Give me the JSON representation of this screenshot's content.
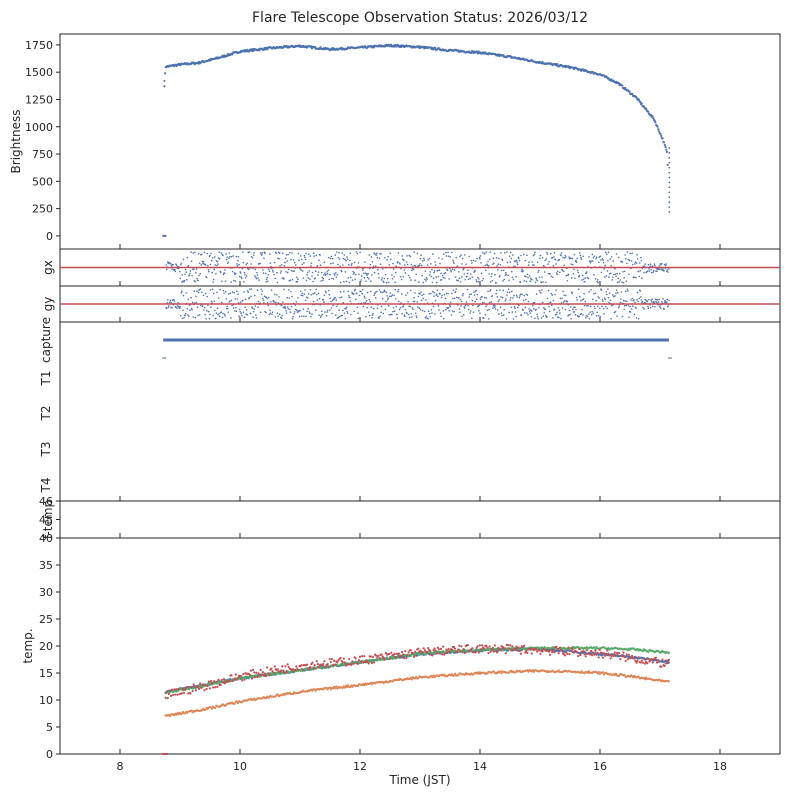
{
  "chart_data": {
    "type": "scatter",
    "title": "Flare Telescope Observation Status: 2026/03/12",
    "xlabel": "Time (JST)",
    "xlim": [
      7,
      19
    ],
    "xticks": [
      "8",
      "10",
      "12",
      "14",
      "16",
      "18"
    ],
    "observation_window": [
      8.72,
      17.15
    ],
    "panels": [
      {
        "id": "brightness",
        "ylabel": "Brightness",
        "ylim": [
          -120,
          1850
        ],
        "yticks": [
          "0",
          "250",
          "500",
          "750",
          "1000",
          "1250",
          "1500",
          "1750"
        ],
        "series": [
          {
            "color": "#4c72b0",
            "points": [
              [
                8.72,
                0
              ],
              [
                8.74,
                1380
              ],
              [
                8.76,
                1550
              ],
              [
                9.0,
                1570
              ],
              [
                9.3,
                1585
              ],
              [
                9.6,
                1625
              ],
              [
                10.0,
                1690
              ],
              [
                10.5,
                1720
              ],
              [
                11.0,
                1740
              ],
              [
                11.5,
                1710
              ],
              [
                12.0,
                1725
              ],
              [
                12.5,
                1745
              ],
              [
                13.0,
                1730
              ],
              [
                13.5,
                1700
              ],
              [
                14.0,
                1680
              ],
              [
                14.5,
                1640
              ],
              [
                15.0,
                1590
              ],
              [
                15.5,
                1545
              ],
              [
                16.0,
                1480
              ],
              [
                16.3,
                1400
              ],
              [
                16.6,
                1270
              ],
              [
                16.9,
                1070
              ],
              [
                17.05,
                880
              ],
              [
                17.12,
                760
              ],
              [
                17.15,
                330
              ],
              [
                17.16,
                220
              ]
            ]
          }
        ]
      },
      {
        "id": "gx",
        "ylabel": "gx",
        "reference_line": {
          "value": 0,
          "color": "#c44e52"
        },
        "series": [
          {
            "color": "#4c72b0",
            "spread": "random scatter around 0 between 8.72 and 17.15"
          }
        ]
      },
      {
        "id": "gy",
        "ylabel": "gy",
        "reference_line": {
          "value": 0,
          "color": "#c44e52"
        },
        "series": [
          {
            "color": "#4c72b0",
            "spread": "random scatter around 0 between 8.72 and 17.15"
          }
        ]
      },
      {
        "id": "status",
        "ylabels": [
          "capture",
          "T1",
          "T2",
          "T3",
          "T4"
        ],
        "series": [
          {
            "name": "capture",
            "color": "#4c72b0",
            "x_range": [
              8.72,
              17.15
            ],
            "level": "capture"
          }
        ]
      },
      {
        "id": "ftemp",
        "ylabel": "f-temp",
        "ylim": [
          44,
          46
        ],
        "yticks": [
          "45",
          "46"
        ]
      },
      {
        "id": "temp",
        "ylabel": "temp.",
        "ylim": [
          0,
          40
        ],
        "yticks": [
          "0",
          "5",
          "10",
          "15",
          "20",
          "25",
          "30",
          "35",
          "40"
        ],
        "series": [
          {
            "color": "#4c72b0",
            "points": [
              [
                8.75,
                11.5
              ],
              [
                10,
                14
              ],
              [
                11,
                15.5
              ],
              [
                12,
                17
              ],
              [
                13,
                18.5
              ],
              [
                14,
                19.2
              ],
              [
                15,
                19.5
              ],
              [
                16,
                18.5
              ],
              [
                16.5,
                18
              ],
              [
                17.15,
                17
              ]
            ]
          },
          {
            "color": "#55a868",
            "points": [
              [
                8.75,
                11.3
              ],
              [
                10,
                14
              ],
              [
                11,
                15.5
              ],
              [
                12,
                17
              ],
              [
                13,
                18.6
              ],
              [
                14,
                19.3
              ],
              [
                15,
                19.6
              ],
              [
                16,
                19.6
              ],
              [
                16.5,
                19.4
              ],
              [
                17.15,
                18.8
              ]
            ]
          },
          {
            "color": "#dd8452",
            "points": [
              [
                8.75,
                7
              ],
              [
                9.5,
                8.5
              ],
              [
                10,
                9.7
              ],
              [
                11,
                11.5
              ],
              [
                12,
                12.8
              ],
              [
                13,
                14.2
              ],
              [
                14,
                15
              ],
              [
                15,
                15.4
              ],
              [
                15.5,
                15.3
              ],
              [
                16,
                15
              ],
              [
                16.5,
                14.4
              ],
              [
                17.15,
                13.3
              ]
            ]
          },
          {
            "color": "#c44e52",
            "points": [
              [
                8.75,
                11
              ],
              [
                9.5,
                13
              ],
              [
                10,
                14.5
              ],
              [
                11,
                16.5
              ],
              [
                12,
                17.5
              ],
              [
                13,
                19
              ],
              [
                14,
                19.7
              ],
              [
                15,
                19.4
              ],
              [
                16,
                18.8
              ],
              [
                16.5,
                18
              ],
              [
                17.15,
                16.8
              ]
            ]
          }
        ]
      }
    ]
  }
}
